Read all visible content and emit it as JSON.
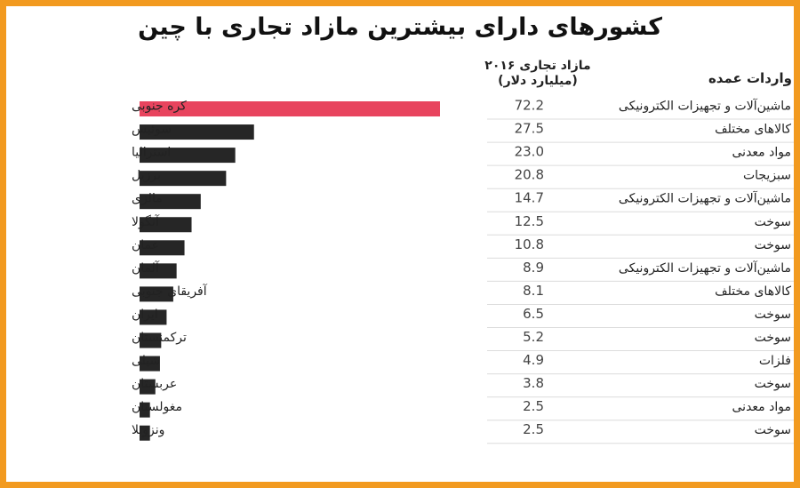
{
  "title": "کشورهای دارای بیشترین مازاد تجاری با چین",
  "headers": {
    "value_line1": "مازاد تجاری ۲۰۱۶",
    "value_line2": "(میلیارد دلار)",
    "imports": "واردات عمده"
  },
  "colors": {
    "highlight": "#e8445e",
    "bar": "#262626",
    "frame": "#f29a1f"
  },
  "chart_data": {
    "type": "bar",
    "orientation": "horizontal",
    "title": "کشورهای دارای بیشترین مازاد تجاری با چین",
    "value_label": "مازاد تجاری ۲۰۱۶ (میلیارد دلار)",
    "categories": [
      "کره جنوبی",
      "سوئیس",
      "استرالیا",
      "برزیل",
      "مالزی",
      "آنگولا",
      "عمان",
      "آلمان",
      "آفریقای جنوبی",
      "ایران",
      "ترکمنستان",
      "شیلی",
      "عربستان",
      "مغولستان",
      "ونزوئلا"
    ],
    "values": [
      72.2,
      27.5,
      23.0,
      20.8,
      14.7,
      12.5,
      10.8,
      8.9,
      8.1,
      6.5,
      5.2,
      4.9,
      3.8,
      2.5,
      2.5
    ],
    "value_labels": [
      "72.2",
      "27.5",
      "23.0",
      "20.8",
      "14.7",
      "12.5",
      "10.8",
      "8.9",
      "8.1",
      "6.5",
      "5.2",
      "4.9",
      "3.8",
      "2.5",
      "2.5"
    ],
    "imports": [
      "ماشین‌آلات و تجهیزات الکترونیکی",
      "کالاهای مختلف",
      "مواد معدنی",
      "سبزیجات",
      "ماشین‌آلات و تجهیزات الکترونیکی",
      "سوخت",
      "سوخت",
      "ماشین‌آلات و تجهیزات الکترونیکی",
      "کالاهای مختلف",
      "سوخت",
      "سوخت",
      "فلزات",
      "سوخت",
      "مواد معدنی",
      "سوخت"
    ],
    "highlight_index": 0
  }
}
